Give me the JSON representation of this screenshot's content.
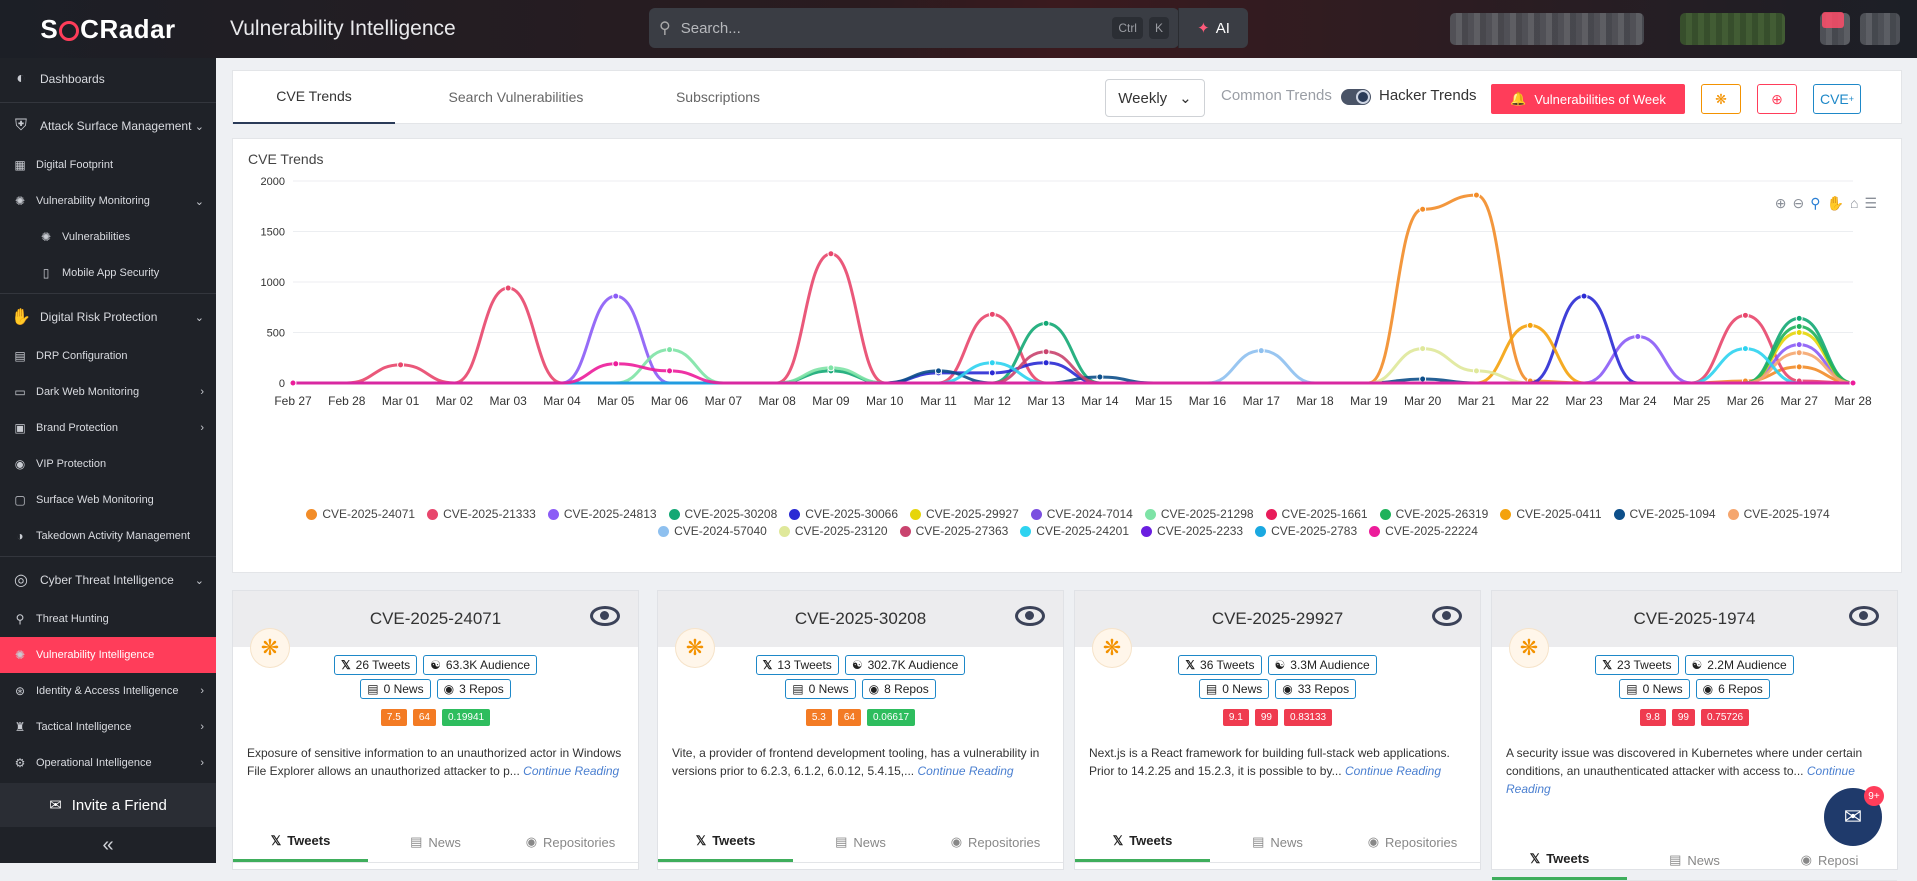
{
  "header": {
    "logo_text": "SOCRadar",
    "title": "Vulnerability Intelligence",
    "search_placeholder": "Search...",
    "kbd_ctrl": "Ctrl",
    "kbd_k": "K",
    "ai_label": "AI"
  },
  "sidebar": {
    "items": [
      {
        "label": "Dashboards",
        "icon": "dashboard-icon",
        "level": "top"
      },
      {
        "label": "Attack Surface Management",
        "icon": "shield-icon",
        "level": "top",
        "arrow": "⌄"
      },
      {
        "label": "Digital Footprint",
        "icon": "footprint-icon",
        "level": "sub"
      },
      {
        "label": "Vulnerability Monitoring",
        "icon": "bug-icon",
        "level": "sub",
        "arrow": "⌄"
      },
      {
        "label": "Vulnerabilities",
        "icon": "bug-icon",
        "level": "sub2"
      },
      {
        "label": "Mobile App Security",
        "icon": "mobile-icon",
        "level": "sub2"
      },
      {
        "label": "Digital Risk Protection",
        "icon": "hand-icon",
        "level": "top",
        "arrow": "⌄"
      },
      {
        "label": "DRP Configuration",
        "icon": "config-icon",
        "level": "sub"
      },
      {
        "label": "Dark Web Monitoring",
        "icon": "monitor-icon",
        "level": "sub",
        "arrow": "›"
      },
      {
        "label": "Brand Protection",
        "icon": "brand-icon",
        "level": "sub",
        "arrow": "›"
      },
      {
        "label": "VIP Protection",
        "icon": "vip-icon",
        "level": "sub"
      },
      {
        "label": "Surface Web Monitoring",
        "icon": "web-icon",
        "level": "sub"
      },
      {
        "label": "Takedown Activity Management",
        "icon": "takedown-icon",
        "level": "sub"
      },
      {
        "label": "Cyber Threat Intelligence",
        "icon": "target-icon",
        "level": "top",
        "arrow": "⌄"
      },
      {
        "label": "Threat Hunting",
        "icon": "search-icon",
        "level": "sub"
      },
      {
        "label": "Vulnerability Intelligence",
        "icon": "bug-icon",
        "level": "sub",
        "active": true
      },
      {
        "label": "Identity & Access Intelligence",
        "icon": "identity-icon",
        "level": "sub",
        "arrow": "›"
      },
      {
        "label": "Tactical Intelligence",
        "icon": "tactical-icon",
        "level": "sub",
        "arrow": "›"
      },
      {
        "label": "Operational Intelligence",
        "icon": "gear-icon",
        "level": "sub",
        "arrow": "›"
      }
    ],
    "invite_label": "Invite a Friend",
    "collapse_glyph": "«"
  },
  "tabs": [
    {
      "label": "CVE Trends",
      "active": true
    },
    {
      "label": "Search Vulnerabilities"
    },
    {
      "label": "Subscriptions"
    }
  ],
  "toolbar": {
    "period": "Weekly",
    "common_trends": "Common Trends",
    "hacker_trends": "Hacker Trends",
    "vow_label": "Vulnerabilities of Week",
    "cve_label": "CVE",
    "cve_sup": "+"
  },
  "chart_title": "CVE Trends",
  "chart_data": {
    "type": "line",
    "x": [
      "Feb 27",
      "Feb 28",
      "Mar 01",
      "Mar 02",
      "Mar 03",
      "Mar 04",
      "Mar 05",
      "Mar 06",
      "Mar 07",
      "Mar 08",
      "Mar 09",
      "Mar 10",
      "Mar 11",
      "Mar 12",
      "Mar 13",
      "Mar 14",
      "Mar 15",
      "Mar 16",
      "Mar 17",
      "Mar 18",
      "Mar 19",
      "Mar 20",
      "Mar 21",
      "Mar 22",
      "Mar 23",
      "Mar 24",
      "Mar 25",
      "Mar 26",
      "Mar 27",
      "Mar 28"
    ],
    "ylim": [
      0,
      2000
    ],
    "yticks": [
      0,
      500,
      1000,
      1500,
      2000
    ],
    "grid": true,
    "legend_position": "bottom",
    "series": [
      {
        "name": "CVE-2025-24071",
        "color": "#f28c28",
        "values": [
          0,
          0,
          0,
          0,
          0,
          0,
          0,
          0,
          0,
          0,
          0,
          0,
          0,
          0,
          0,
          0,
          0,
          0,
          0,
          0,
          0,
          1720,
          1860,
          20,
          0,
          0,
          0,
          20,
          160,
          0
        ]
      },
      {
        "name": "CVE-2025-21333",
        "color": "#e8466c",
        "values": [
          0,
          0,
          180,
          0,
          940,
          0,
          0,
          0,
          0,
          0,
          1280,
          0,
          0,
          680,
          0,
          0,
          0,
          0,
          0,
          0,
          0,
          0,
          0,
          0,
          0,
          0,
          0,
          670,
          20,
          0
        ]
      },
      {
        "name": "CVE-2025-24813",
        "color": "#8b5cf6",
        "values": [
          0,
          0,
          0,
          0,
          0,
          0,
          860,
          0,
          0,
          0,
          0,
          0,
          0,
          0,
          0,
          0,
          0,
          0,
          0,
          0,
          0,
          0,
          0,
          0,
          0,
          460,
          0,
          0,
          380,
          0
        ]
      },
      {
        "name": "CVE-2025-30208",
        "color": "#13a874",
        "values": [
          0,
          0,
          0,
          0,
          0,
          0,
          0,
          0,
          0,
          0,
          120,
          0,
          0,
          0,
          590,
          0,
          0,
          0,
          0,
          0,
          0,
          0,
          0,
          0,
          0,
          0,
          0,
          0,
          640,
          0
        ]
      },
      {
        "name": "CVE-2025-30066",
        "color": "#2a2ad4",
        "values": [
          0,
          0,
          0,
          0,
          0,
          0,
          0,
          0,
          0,
          0,
          0,
          0,
          100,
          100,
          200,
          0,
          0,
          0,
          0,
          0,
          0,
          0,
          0,
          0,
          860,
          0,
          0,
          0,
          0,
          0
        ]
      },
      {
        "name": "CVE-2025-29927",
        "color": "#e6d50a",
        "values": [
          0,
          0,
          0,
          0,
          0,
          0,
          0,
          0,
          0,
          0,
          0,
          0,
          0,
          0,
          0,
          0,
          0,
          0,
          0,
          0,
          0,
          0,
          0,
          0,
          0,
          0,
          0,
          0,
          500,
          0
        ]
      },
      {
        "name": "CVE-2024-7014",
        "color": "#7b4fe0",
        "values": [
          0,
          0,
          0,
          0,
          0,
          0,
          0,
          0,
          0,
          0,
          0,
          0,
          0,
          0,
          0,
          0,
          0,
          0,
          0,
          0,
          0,
          0,
          0,
          0,
          0,
          0,
          0,
          0,
          0,
          0
        ]
      },
      {
        "name": "CVE-2025-21298",
        "color": "#7ee3a6",
        "values": [
          0,
          0,
          0,
          0,
          0,
          0,
          0,
          330,
          0,
          0,
          150,
          0,
          0,
          0,
          0,
          0,
          0,
          0,
          0,
          0,
          0,
          0,
          0,
          0,
          0,
          0,
          0,
          0,
          0,
          0
        ]
      },
      {
        "name": "CVE-2025-1661",
        "color": "#e81c5a",
        "values": [
          0,
          0,
          0,
          0,
          0,
          0,
          0,
          0,
          0,
          0,
          0,
          0,
          0,
          0,
          0,
          0,
          0,
          0,
          0,
          0,
          0,
          0,
          0,
          0,
          0,
          0,
          0,
          0,
          0,
          0
        ]
      },
      {
        "name": "CVE-2025-26319",
        "color": "#1fb25a",
        "values": [
          0,
          0,
          0,
          0,
          0,
          0,
          0,
          0,
          0,
          0,
          0,
          0,
          0,
          0,
          0,
          0,
          0,
          0,
          0,
          0,
          0,
          0,
          0,
          0,
          0,
          0,
          0,
          0,
          560,
          0
        ]
      },
      {
        "name": "CVE-2025-0411",
        "color": "#f4a20c",
        "values": [
          0,
          0,
          0,
          0,
          0,
          0,
          0,
          0,
          0,
          0,
          0,
          0,
          0,
          0,
          0,
          0,
          0,
          0,
          0,
          0,
          0,
          0,
          0,
          570,
          0,
          0,
          0,
          0,
          0,
          0
        ]
      },
      {
        "name": "CVE-2025-1094",
        "color": "#0d4f8a",
        "values": [
          0,
          0,
          0,
          0,
          0,
          0,
          0,
          0,
          0,
          0,
          0,
          0,
          120,
          0,
          0,
          60,
          0,
          0,
          0,
          0,
          0,
          40,
          0,
          0,
          0,
          0,
          0,
          0,
          0,
          0
        ]
      },
      {
        "name": "CVE-2025-1974",
        "color": "#f5a66e",
        "values": [
          0,
          0,
          0,
          0,
          0,
          0,
          0,
          0,
          0,
          0,
          0,
          0,
          0,
          0,
          0,
          0,
          0,
          0,
          0,
          0,
          0,
          0,
          0,
          0,
          0,
          0,
          0,
          0,
          300,
          0
        ]
      },
      {
        "name": "CVE-2024-57040",
        "color": "#8ec0ef",
        "values": [
          0,
          0,
          0,
          0,
          0,
          0,
          0,
          0,
          0,
          0,
          0,
          0,
          0,
          0,
          0,
          0,
          0,
          0,
          320,
          0,
          0,
          0,
          0,
          0,
          0,
          0,
          0,
          0,
          0,
          0
        ]
      },
      {
        "name": "CVE-2025-23120",
        "color": "#dfe89a",
        "values": [
          0,
          0,
          0,
          0,
          0,
          0,
          0,
          0,
          0,
          0,
          0,
          0,
          0,
          0,
          0,
          0,
          0,
          0,
          0,
          0,
          0,
          340,
          120,
          0,
          0,
          0,
          0,
          0,
          0,
          0
        ]
      },
      {
        "name": "CVE-2025-27363",
        "color": "#c9436e",
        "values": [
          0,
          0,
          0,
          0,
          0,
          0,
          0,
          0,
          0,
          0,
          0,
          0,
          0,
          0,
          310,
          0,
          0,
          0,
          0,
          0,
          0,
          0,
          0,
          0,
          0,
          0,
          0,
          0,
          0,
          0
        ]
      },
      {
        "name": "CVE-2025-24201",
        "color": "#2ed3f0",
        "values": [
          0,
          0,
          0,
          0,
          0,
          0,
          0,
          0,
          0,
          0,
          0,
          0,
          0,
          200,
          0,
          0,
          0,
          0,
          0,
          0,
          0,
          0,
          0,
          0,
          0,
          0,
          0,
          340,
          0,
          0
        ]
      },
      {
        "name": "CVE-2025-2233",
        "color": "#6a1ee0",
        "values": [
          0,
          0,
          0,
          0,
          0,
          0,
          0,
          0,
          0,
          0,
          0,
          0,
          0,
          0,
          0,
          0,
          0,
          0,
          0,
          0,
          0,
          0,
          0,
          0,
          0,
          0,
          0,
          0,
          0,
          0
        ]
      },
      {
        "name": "CVE-2025-2783",
        "color": "#1aa8e0",
        "values": [
          0,
          0,
          0,
          0,
          0,
          0,
          0,
          0,
          0,
          0,
          0,
          0,
          0,
          0,
          0,
          0,
          0,
          0,
          0,
          0,
          0,
          0,
          0,
          0,
          0,
          0,
          0,
          0,
          0,
          0
        ]
      },
      {
        "name": "CVE-2025-22224",
        "color": "#ec1c9a",
        "values": [
          0,
          0,
          0,
          0,
          0,
          0,
          190,
          120,
          0,
          0,
          0,
          0,
          0,
          0,
          0,
          0,
          0,
          0,
          0,
          0,
          0,
          0,
          0,
          0,
          0,
          0,
          0,
          0,
          0,
          0
        ]
      }
    ]
  },
  "cards": [
    {
      "cve": "CVE-2025-24071",
      "tweets": "26 Tweets",
      "audience": "63.3K Audience",
      "news": "0 News",
      "repos": "3 Repos",
      "scores": [
        {
          "v": "7.5",
          "c": "#f37b24"
        },
        {
          "v": "64",
          "c": "#f37b24"
        },
        {
          "v": "0.19941",
          "c": "#2ebd5e"
        }
      ],
      "desc": "Exposure of sensitive information to an unauthorized actor in Windows File Explorer allows an unauthorized attacker to p...",
      "more": "Continue Reading"
    },
    {
      "cve": "CVE-2025-30208",
      "tweets": "13 Tweets",
      "audience": "302.7K Audience",
      "news": "0 News",
      "repos": "8 Repos",
      "scores": [
        {
          "v": "5.3",
          "c": "#f37b24"
        },
        {
          "v": "64",
          "c": "#f37b24"
        },
        {
          "v": "0.06617",
          "c": "#2ebd5e"
        }
      ],
      "desc": "Vite, a provider of frontend development tooling, has a vulnerability in versions prior to 6.2.3, 6.1.2, 6.0.12, 5.4.15,...",
      "more": "Continue Reading"
    },
    {
      "cve": "CVE-2025-29927",
      "tweets": "36 Tweets",
      "audience": "3.3M Audience",
      "news": "0 News",
      "repos": "33 Repos",
      "scores": [
        {
          "v": "9.1",
          "c": "#ef3b4f"
        },
        {
          "v": "99",
          "c": "#ef3b4f"
        },
        {
          "v": "0.83133",
          "c": "#ef3b4f"
        }
      ],
      "desc": "Next.js is a React framework for building full-stack web applications. Prior to 14.2.25 and 15.2.3, it is possible to by...",
      "more": "Continue Reading"
    },
    {
      "cve": "CVE-2025-1974",
      "tweets": "23 Tweets",
      "audience": "2.2M Audience",
      "news": "0 News",
      "repos": "6 Repos",
      "scores": [
        {
          "v": "9.8",
          "c": "#ef3b4f"
        },
        {
          "v": "99",
          "c": "#ef3b4f"
        },
        {
          "v": "0.75726",
          "c": "#ef3b4f"
        }
      ],
      "desc": "A security issue was discovered in Kubernetes where under certain conditions, an unauthenticated attacker with access to...",
      "more": "Continue Reading"
    }
  ],
  "card_tabs": [
    "Tweets",
    "News",
    "Repositories",
    "Reposi"
  ],
  "chat_badge": "9+"
}
